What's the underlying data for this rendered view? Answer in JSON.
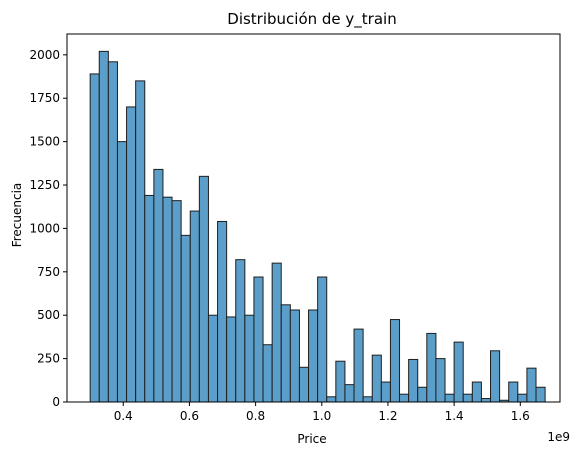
{
  "chart_data": {
    "type": "bar",
    "title": "Distribución de y_train",
    "xlabel": "Price",
    "ylabel": "Frecuencia",
    "x_offset_text": "1e9",
    "xlim": [
      0.23,
      1.72
    ],
    "ylim": [
      0,
      2120
    ],
    "bin_start": 0.3,
    "bin_width": 0.0275,
    "x_ticks": [
      0.4,
      0.6,
      0.8,
      1.0,
      1.2,
      1.4,
      1.6
    ],
    "x_tick_labels": [
      "0.4",
      "0.6",
      "0.8",
      "1.0",
      "1.2",
      "1.4",
      "1.6"
    ],
    "y_ticks": [
      0,
      250,
      500,
      750,
      1000,
      1250,
      1500,
      1750,
      2000
    ],
    "y_tick_labels": [
      "0",
      "250",
      "500",
      "750",
      "1000",
      "1250",
      "1500",
      "1750",
      "2000"
    ],
    "values": [
      1890,
      2020,
      1960,
      1500,
      1700,
      1850,
      1190,
      1340,
      1180,
      1160,
      960,
      1100,
      1300,
      500,
      1040,
      490,
      820,
      500,
      720,
      330,
      800,
      560,
      530,
      200,
      530,
      720,
      30,
      235,
      100,
      420,
      30,
      270,
      115,
      475,
      45,
      245,
      85,
      395,
      250,
      45,
      345,
      45,
      115,
      20,
      295,
      10,
      115,
      45,
      195,
      85
    ],
    "bar_color": "#5b9ec9",
    "edge_color": "#1f1f1f",
    "grid": false
  }
}
